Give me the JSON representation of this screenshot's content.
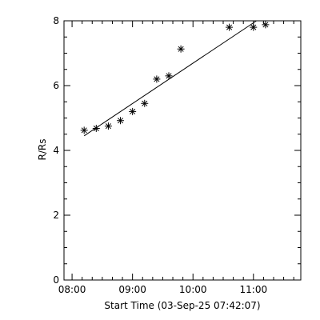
{
  "chart_data": {
    "type": "scatter",
    "title": "",
    "xlabel": "Start Time (03-Sep-25 07:42:07)",
    "ylabel": "R/Rs",
    "x_unit": "time",
    "xlim": [
      "07:52",
      "11:47"
    ],
    "ylim": [
      0,
      8
    ],
    "x_ticks": [
      {
        "t": "08:00",
        "label": "08:00"
      },
      {
        "t": "09:00",
        "label": "09:00"
      },
      {
        "t": "10:00",
        "label": "10:00"
      },
      {
        "t": "11:00",
        "label": "11:00"
      }
    ],
    "y_ticks": [
      0,
      2,
      4,
      6,
      8
    ],
    "grid": false,
    "marker": "asterisk",
    "points": [
      {
        "t": "08:12",
        "y": 4.62
      },
      {
        "t": "08:24",
        "y": 4.68
      },
      {
        "t": "08:36",
        "y": 4.75
      },
      {
        "t": "08:48",
        "y": 4.92
      },
      {
        "t": "09:00",
        "y": 5.2
      },
      {
        "t": "09:12",
        "y": 5.45
      },
      {
        "t": "09:24",
        "y": 6.2
      },
      {
        "t": "09:36",
        "y": 6.3
      },
      {
        "t": "09:48",
        "y": 7.13
      },
      {
        "t": "10:36",
        "y": 7.8
      },
      {
        "t": "10:60",
        "y": 7.8
      },
      {
        "t": "11:12",
        "y": 7.88
      }
    ],
    "fit_line": [
      {
        "t": "08:12",
        "y": 4.45
      },
      {
        "t": "11:03",
        "y": 8.0
      }
    ]
  }
}
